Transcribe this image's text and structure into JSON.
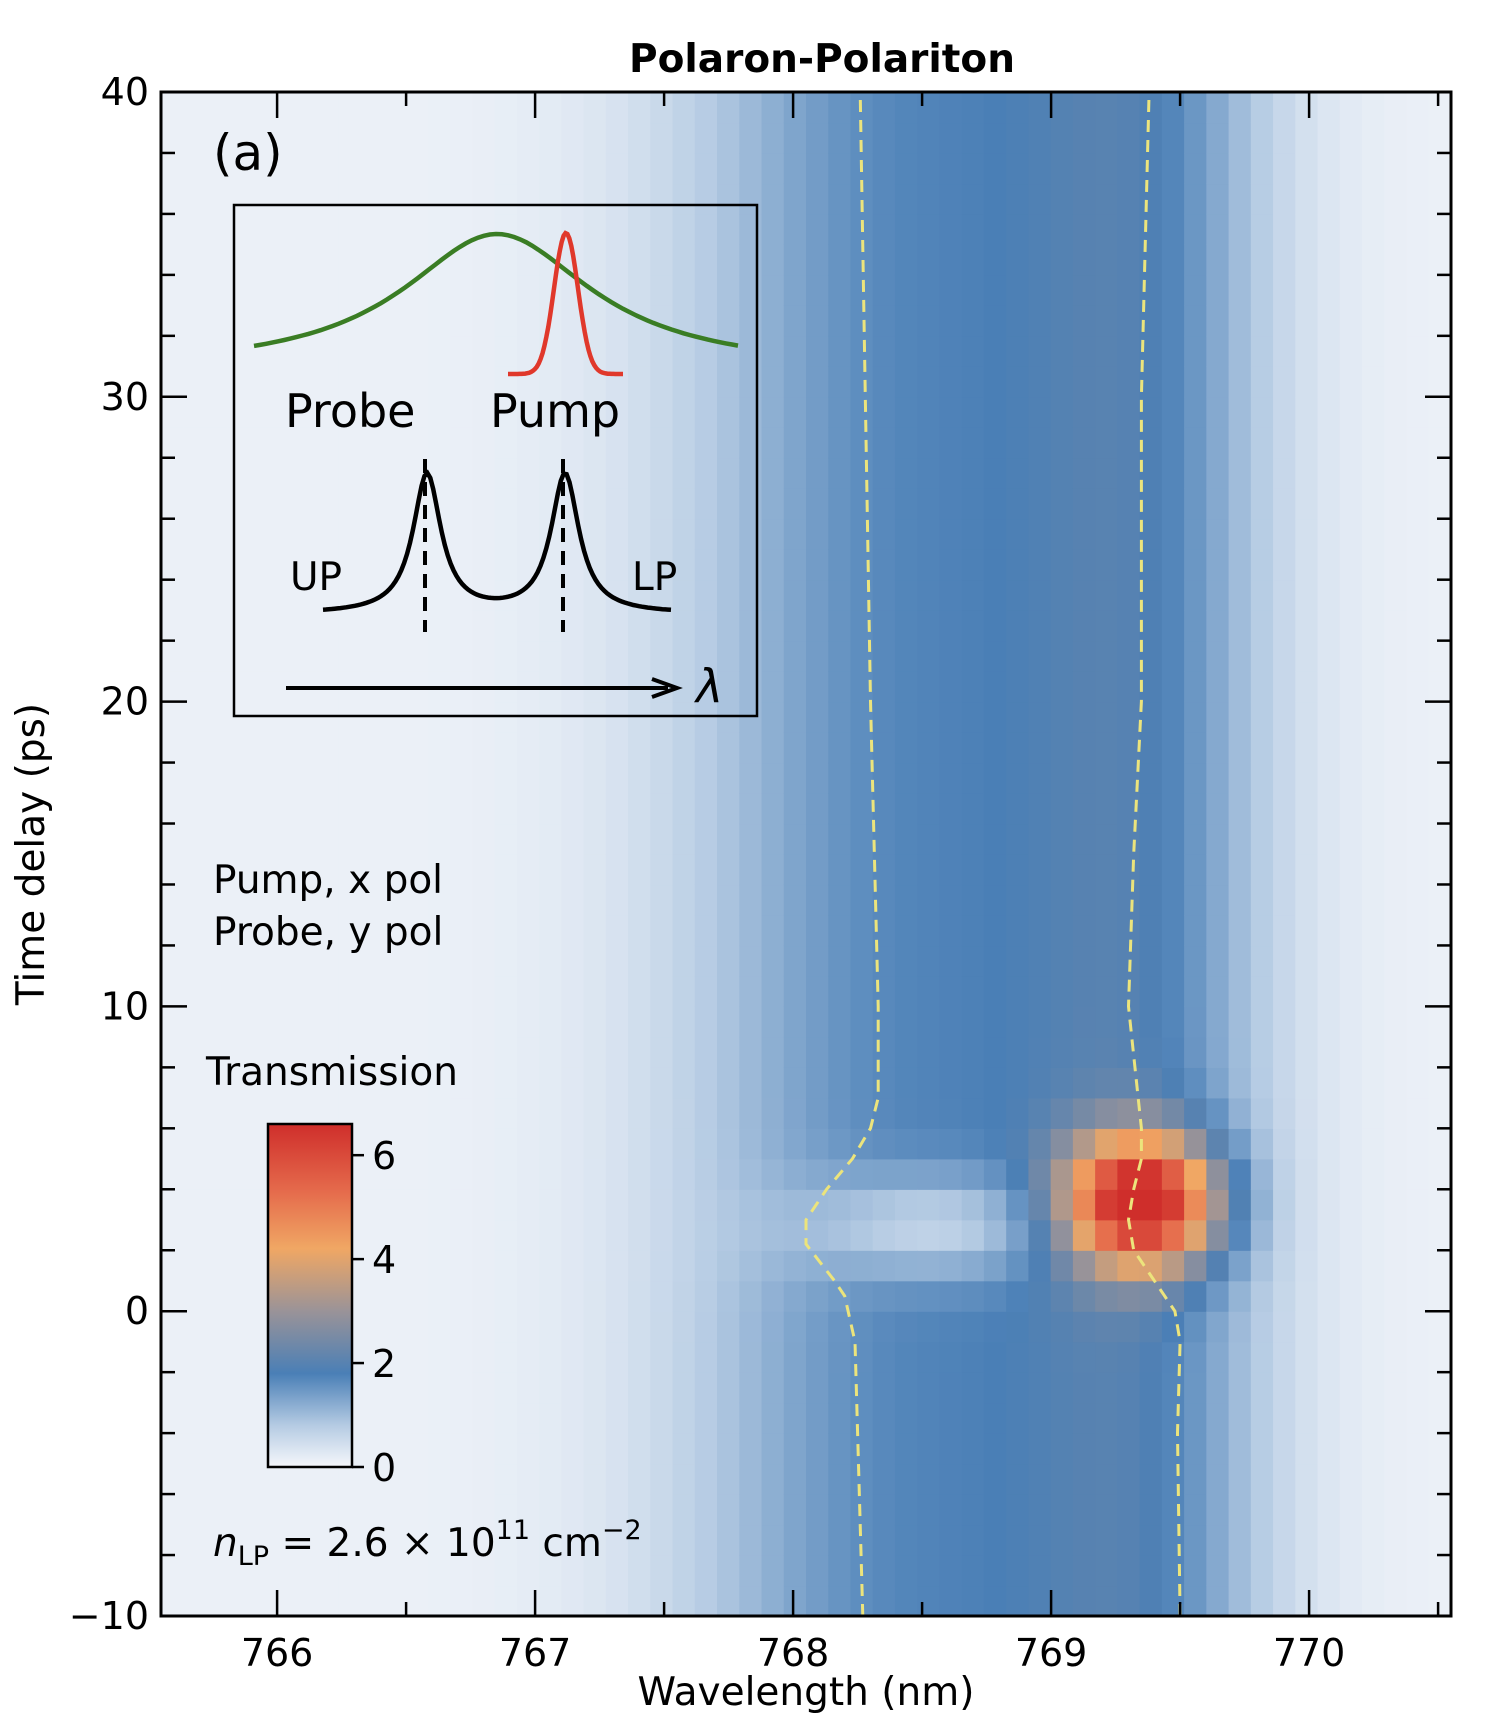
{
  "chart_data": {
    "type": "heatmap",
    "title": "Polaron-Polariton",
    "panel_label": "(a)",
    "xlabel": "Wavelength (nm)",
    "ylabel": "Time delay (ps)",
    "xlim": [
      765.55,
      770.55
    ],
    "ylim": [
      -10,
      40
    ],
    "xticks": [
      766,
      767,
      768,
      769,
      770
    ],
    "yticks": [
      -10,
      0,
      10,
      20,
      30,
      40
    ],
    "xtick_labels": [
      "766",
      "767",
      "768",
      "769",
      "770"
    ],
    "ytick_labels": [
      "−10",
      "0",
      "10",
      "20",
      "30",
      "40"
    ],
    "colorbar": {
      "label": "Transmission",
      "range": [
        0,
        6.6
      ],
      "ticks": [
        0,
        2,
        4,
        6
      ],
      "tick_labels": [
        "0",
        "2",
        "4",
        "6"
      ],
      "colormap": [
        {
          "v": 0.0,
          "color": "#f5f7fb"
        },
        {
          "v": 0.8,
          "color": "#b5cbe3"
        },
        {
          "v": 1.8,
          "color": "#4a7fb6"
        },
        {
          "v": 3.0,
          "color": "#9a9398"
        },
        {
          "v": 4.2,
          "color": "#f0a764"
        },
        {
          "v": 5.3,
          "color": "#e56b4c"
        },
        {
          "v": 6.6,
          "color": "#cf2e2b"
        }
      ]
    },
    "model": {
      "background": 0.12,
      "bands": [
        {
          "center": 768.45,
          "width": 0.6,
          "amplitude": 1.55
        },
        {
          "center": 769.35,
          "width": 0.35,
          "amplitude": 1.3
        }
      ],
      "features": [
        {
          "type": "peak",
          "x": 769.35,
          "y": 3.6,
          "sx": 0.2,
          "sy": 1.5,
          "amplitude": 5.6
        },
        {
          "type": "dip",
          "x": 768.55,
          "y": 2.8,
          "sx": 0.35,
          "sy": 1.2,
          "amplitude": 1.1
        }
      ]
    },
    "series": [
      {
        "name": "UP peak",
        "style": "dashed",
        "color": "#ece47c",
        "points": [
          [
            768.27,
            -10
          ],
          [
            768.25,
            -4
          ],
          [
            768.24,
            -1
          ],
          [
            768.2,
            0.5
          ],
          [
            768.16,
            1
          ],
          [
            768.05,
            2.2
          ],
          [
            768.05,
            3
          ],
          [
            768.13,
            4
          ],
          [
            768.23,
            5
          ],
          [
            768.3,
            6
          ],
          [
            768.33,
            7
          ],
          [
            768.33,
            10
          ],
          [
            768.3,
            20
          ],
          [
            768.28,
            30
          ],
          [
            768.26,
            40
          ]
        ]
      },
      {
        "name": "LP peak",
        "style": "dashed",
        "color": "#ece47c",
        "points": [
          [
            769.5,
            -10
          ],
          [
            769.49,
            -4
          ],
          [
            769.5,
            -1
          ],
          [
            769.48,
            0
          ],
          [
            769.4,
            1
          ],
          [
            769.32,
            2
          ],
          [
            769.3,
            3
          ],
          [
            769.32,
            4
          ],
          [
            769.35,
            5
          ],
          [
            769.35,
            6
          ],
          [
            769.3,
            10
          ],
          [
            769.32,
            15
          ],
          [
            769.35,
            20
          ],
          [
            769.35,
            30
          ],
          [
            769.38,
            40
          ]
        ]
      }
    ],
    "annotations": {
      "pump_line": "Pump, x pol",
      "probe_line": "Probe, y pol",
      "density_label": "n_LP = 2.6 × 10^11 cm^−2"
    },
    "inset": {
      "probe_label": "Probe",
      "pump_label": "Pump",
      "up_label": "UP",
      "lp_label": "LP",
      "axis_label": "λ",
      "probe_color": "#3a7d24",
      "pump_color": "#e0382b"
    }
  }
}
